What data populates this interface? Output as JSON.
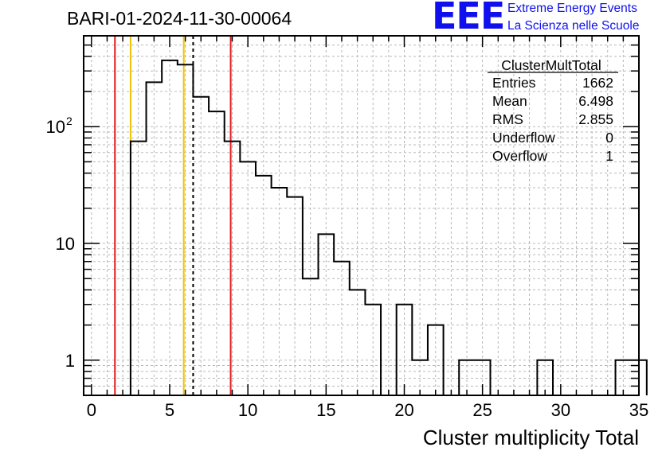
{
  "header": {
    "run_title": "BARI-01-2024-11-30-00064",
    "logo_text": "EEE",
    "logo_line1": "Extreme Energy Events",
    "logo_line2": "La Scienza nelle Scuole",
    "logo_color": "#1010ee"
  },
  "stats": {
    "name": "ClusterMultTotal",
    "rows": [
      {
        "label": "Entries",
        "value": "1662"
      },
      {
        "label": "Mean",
        "value": "6.498"
      },
      {
        "label": "RMS",
        "value": "2.855"
      },
      {
        "label": "Underflow",
        "value": "0"
      },
      {
        "label": "Overflow",
        "value": "1"
      }
    ]
  },
  "chart_data": {
    "type": "histogram",
    "title": "",
    "xlabel": "Cluster multiplicity Total",
    "ylabel": "",
    "xlim": [
      -0.5,
      35
    ],
    "ylim": [
      0.5,
      600
    ],
    "yscale": "log",
    "grid": true,
    "bin_width": 1,
    "bins_x_low": [
      2.5,
      3.5,
      4.5,
      5.5,
      6.5,
      7.5,
      8.5,
      9.5,
      10.5,
      11.5,
      12.5,
      13.5,
      14.5,
      15.5,
      16.5,
      17.5,
      18.5,
      19.5,
      20.5,
      21.5,
      22.5,
      23.5,
      24.5,
      25.5,
      26.5,
      27.5,
      28.5,
      29.5,
      30.5,
      31.5,
      32.5,
      33.5,
      34.5
    ],
    "counts": [
      75,
      240,
      370,
      340,
      180,
      135,
      75,
      50,
      38,
      30,
      25,
      5,
      12,
      7,
      4,
      3,
      0,
      3,
      1,
      2,
      0,
      1,
      1,
      0,
      0,
      0,
      1,
      0,
      0,
      0,
      0,
      1,
      1
    ],
    "x_ticks": [
      0,
      5,
      10,
      15,
      20,
      25,
      30,
      35
    ],
    "y_ticks": [
      {
        "value": 1,
        "label": "1"
      },
      {
        "value": 10,
        "label": "10"
      },
      {
        "value": 100,
        "label": "10",
        "sup": "2"
      }
    ],
    "vertical_lines": [
      {
        "x": 1.5,
        "color": "#e41a1c",
        "style": "solid"
      },
      {
        "x": 2.5,
        "color": "#f2c200",
        "style": "solid"
      },
      {
        "x": 5.9,
        "color": "#f2c200",
        "style": "solid"
      },
      {
        "x": 6.5,
        "color": "#000000",
        "style": "dashed"
      },
      {
        "x": 8.9,
        "color": "#e41a1c",
        "style": "solid"
      }
    ]
  }
}
